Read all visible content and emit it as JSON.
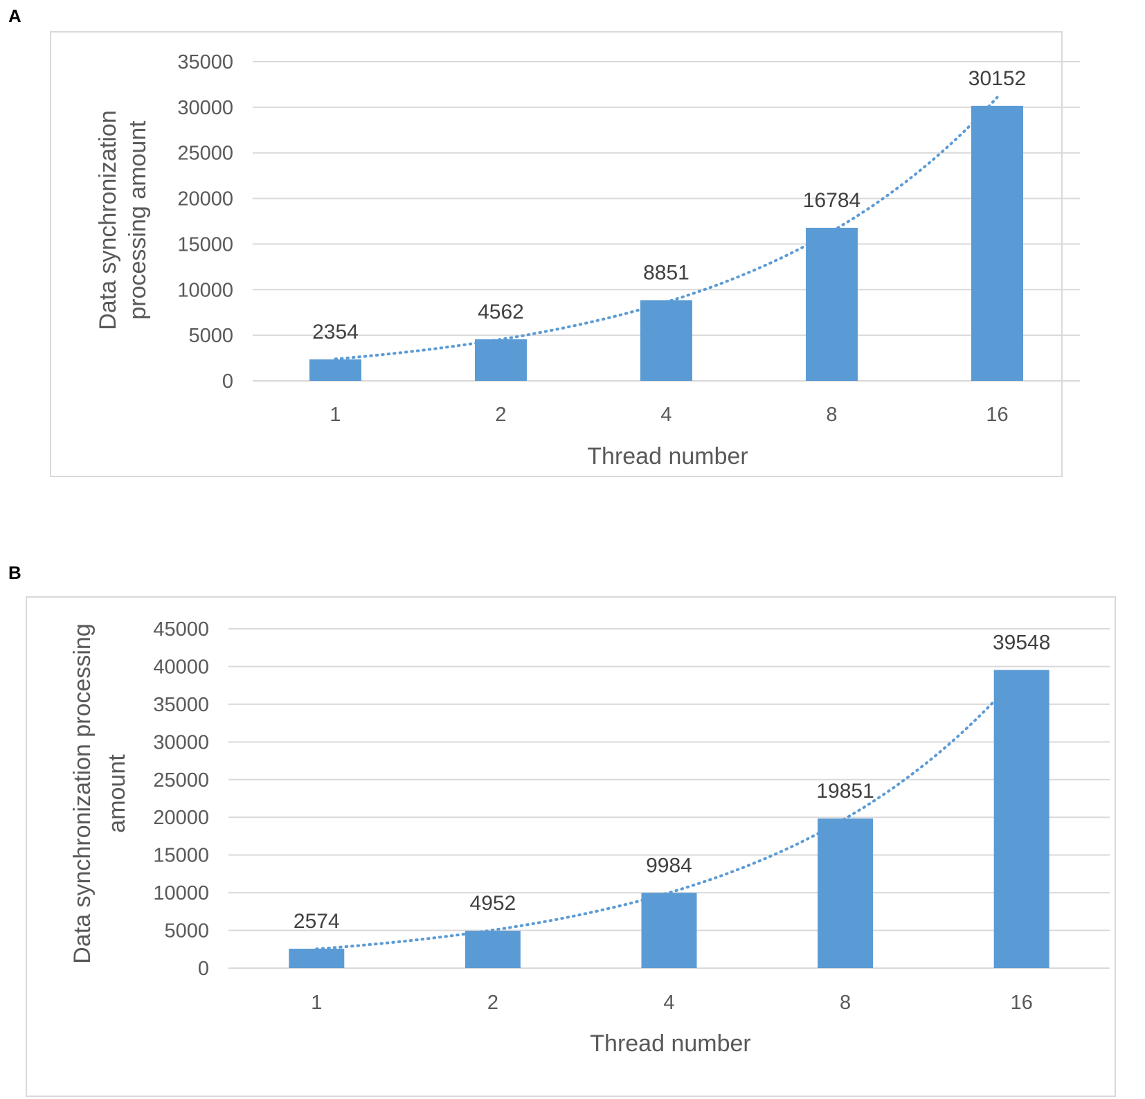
{
  "panels": [
    {
      "label": "A"
    },
    {
      "label": "B"
    }
  ],
  "colors": {
    "bar": "#5b9bd5",
    "trendline": "#5b9bd5",
    "grid": "#d9d9d9",
    "frame": "#d9d9d9"
  },
  "chart_data": [
    {
      "type": "bar",
      "categories": [
        "1",
        "2",
        "4",
        "8",
        "16"
      ],
      "values": [
        2354,
        4562,
        8851,
        16784,
        30152
      ],
      "data_labels": [
        "2354",
        "4562",
        "8851",
        "16784",
        "30152"
      ],
      "ylim": [
        0,
        35000
      ],
      "yticks": [
        "0",
        "5000",
        "10000",
        "15000",
        "20000",
        "25000",
        "30000",
        "35000"
      ],
      "xlabel": "Thread number",
      "ylabel_lines": [
        "Data synchronization",
        "processing     amount"
      ],
      "trendline": "exponential, dotted",
      "grid": true,
      "legend": "none"
    },
    {
      "type": "bar",
      "categories": [
        "1",
        "2",
        "4",
        "8",
        "16"
      ],
      "values": [
        2574,
        4952,
        9984,
        19851,
        39548
      ],
      "data_labels": [
        "2574",
        "4952",
        "9984",
        "19851",
        "39548"
      ],
      "ylim": [
        0,
        45000
      ],
      "yticks": [
        "0",
        "5000",
        "10000",
        "15000",
        "20000",
        "25000",
        "30000",
        "35000",
        "40000",
        "45000"
      ],
      "xlabel": "Thread number",
      "ylabel_lines": [
        "Data synchronization processing",
        "amount"
      ],
      "trendline": "exponential, dotted",
      "grid": true,
      "legend": "none"
    }
  ]
}
